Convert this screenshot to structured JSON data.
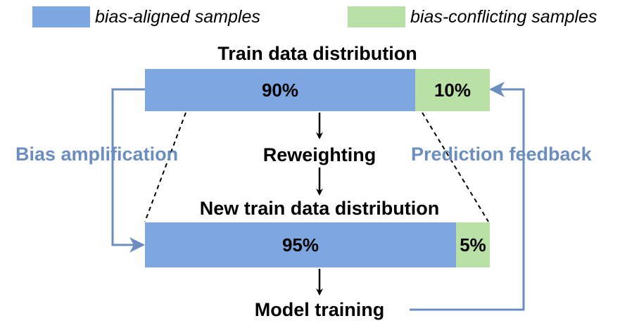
{
  "colors": {
    "aligned": "#7ea6e0",
    "conflicting": "#b9e0a5",
    "feedback": "#6c8ebf",
    "text": "#000000"
  },
  "legend": {
    "aligned_label": "bias-aligned samples",
    "conflicting_label": "bias-conflicting samples"
  },
  "train": {
    "title": "Train data distribution",
    "aligned_pct": "90%",
    "conflicting_pct": "10%",
    "aligned_fraction": 0.9
  },
  "reweighting_label": "Reweighting",
  "new_train": {
    "title": "New train data distribution",
    "aligned_pct": "95%",
    "conflicting_pct": "5%",
    "aligned_fraction": 0.95
  },
  "model_training_label": "Model training",
  "bias_amplification_label": "Bias amplification",
  "prediction_feedback_label": "Prediction feedback"
}
